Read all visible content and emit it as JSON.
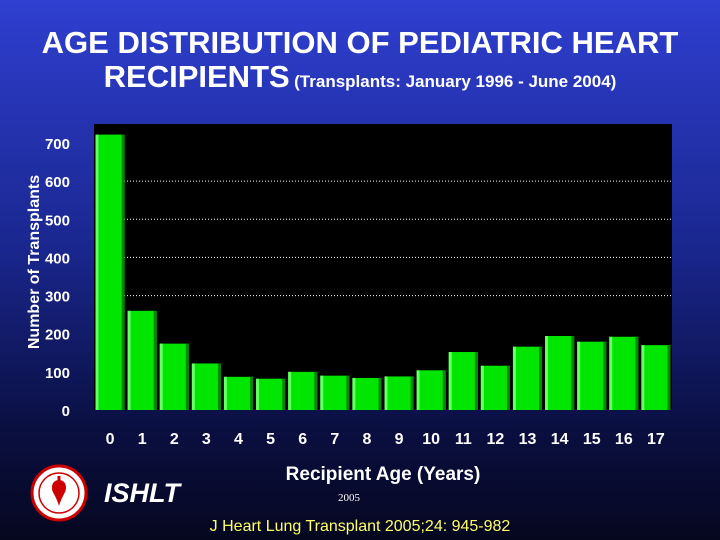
{
  "title": {
    "line1": "AGE DISTRIBUTION OF PEDIATRIC HEART",
    "line2": "RECIPIENTS",
    "subtitle": "(Transplants: January 1996 - June 2004)"
  },
  "footer": {
    "organization": "ISHLT",
    "year": "2005",
    "citation": "J Heart Lung Transplant 2005;24: 945-982"
  },
  "logo": {
    "icon": "ishlt-seal-icon"
  },
  "colors": {
    "bar": "#00e600",
    "bar_light": "#66ff66",
    "bar_dark": "#008800",
    "plot_bg": "#000000",
    "citation": "#ffff66"
  },
  "chart_data": {
    "type": "bar",
    "title": "",
    "xlabel": "Recipient Age (Years)",
    "ylabel": "Number of Transplants",
    "categories": [
      "0",
      "1",
      "2",
      "3",
      "4",
      "5",
      "6",
      "7",
      "8",
      "9",
      "10",
      "11",
      "12",
      "13",
      "14",
      "15",
      "16",
      "17"
    ],
    "values": [
      722,
      260,
      174,
      122,
      87,
      82,
      100,
      90,
      84,
      88,
      104,
      152,
      116,
      166,
      194,
      179,
      192,
      170
    ],
    "ylim": [
      0,
      700
    ],
    "yticks": [
      "0",
      "100",
      "200",
      "300",
      "400",
      "500",
      "600",
      "700"
    ],
    "grid": "horizontal dotted",
    "legend": "none"
  }
}
